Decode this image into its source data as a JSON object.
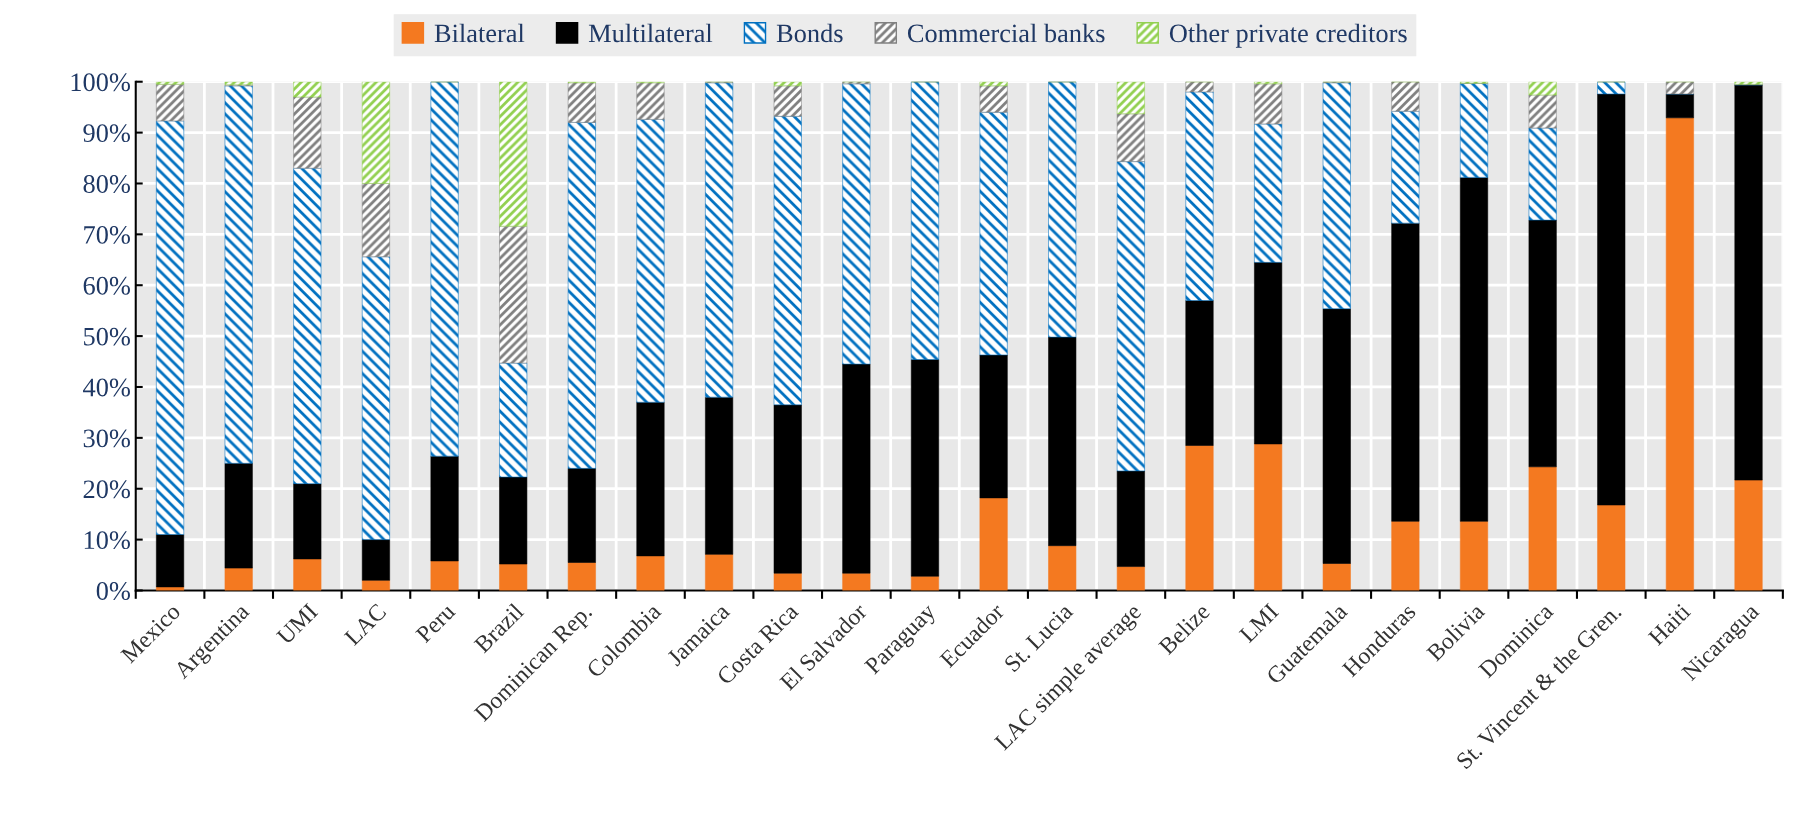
{
  "chart_data": {
    "type": "bar",
    "stacked": true,
    "legend": "top",
    "grid": true,
    "categories": [
      "Mexico",
      "Argentina",
      "UMI",
      "LAC",
      "Peru",
      "Brazil",
      "Dominican Rep.",
      "Colombia",
      "Jamaica",
      "Costa Rica",
      "El Salvador",
      "Paraguay",
      "Ecuador",
      "St. Lucia",
      "LAC simple average",
      "Belize",
      "LMI",
      "Guatemala",
      "Honduras",
      "Bolivia",
      "Dominica",
      "St. Vincent & the Gren.",
      "Haiti",
      "Nicaragua"
    ],
    "series": [
      {
        "name": "Bilateral",
        "color": "#f47920",
        "values": [
          0.7,
          4.4,
          6.2,
          2,
          5.8,
          5.2,
          5.5,
          6.8,
          7.1,
          3.4,
          3.4,
          2.8,
          18.2,
          8.8,
          4.7,
          28.5,
          28.8,
          5.3,
          13.6,
          13.6,
          24.3,
          16.8,
          92.9,
          21.7
        ]
      },
      {
        "name": "Multilateral",
        "color": "#000000",
        "values": [
          10.3,
          20.6,
          14.8,
          8,
          20.6,
          17.1,
          18.5,
          30.2,
          30.9,
          33.1,
          41.1,
          42.6,
          28.1,
          41,
          18.8,
          28.5,
          35.7,
          50.1,
          58.6,
          67.6,
          48.5,
          80.8,
          4.7,
          77.7
        ]
      },
      {
        "name": "Bonds",
        "color": "#0070c0",
        "values": [
          81.3,
          74.2,
          62,
          55.6,
          73.6,
          22.4,
          68,
          55.6,
          61.8,
          56.7,
          55.1,
          54.6,
          47.7,
          50.2,
          60.8,
          41,
          27.2,
          44.4,
          22,
          18.5,
          18.1,
          2.4,
          0,
          0
        ]
      },
      {
        "name": "Commercial banks",
        "color": "#808080",
        "values": [
          7.2,
          0.2,
          14,
          14.4,
          0,
          26.9,
          7.8,
          7.2,
          0.2,
          6,
          0.4,
          0,
          5.2,
          0,
          9.4,
          2,
          7.9,
          0.2,
          5.8,
          0,
          6.5,
          0,
          2.4,
          0.1
        ]
      },
      {
        "name": "Other private creditors",
        "color": "#92d050",
        "values": [
          0.5,
          0.6,
          3,
          20,
          0,
          28.4,
          0.2,
          0.2,
          0,
          0.8,
          0,
          0,
          0.8,
          0,
          6.3,
          0,
          0.4,
          0,
          0,
          0.3,
          2.6,
          0,
          0,
          0.5
        ]
      }
    ],
    "ylim": [
      0,
      100
    ],
    "yticks": [
      {
        "value": 0,
        "label": "0%"
      },
      {
        "value": 10,
        "label": "10%"
      },
      {
        "value": 20,
        "label": "20%"
      },
      {
        "value": 30,
        "label": "30%"
      },
      {
        "value": 40,
        "label": "40%"
      },
      {
        "value": 50,
        "label": "50%"
      },
      {
        "value": 60,
        "label": "60%"
      },
      {
        "value": 70,
        "label": "70%"
      },
      {
        "value": 80,
        "label": "80%"
      },
      {
        "value": 90,
        "label": "90%"
      },
      {
        "value": 100,
        "label": "100%"
      }
    ]
  }
}
